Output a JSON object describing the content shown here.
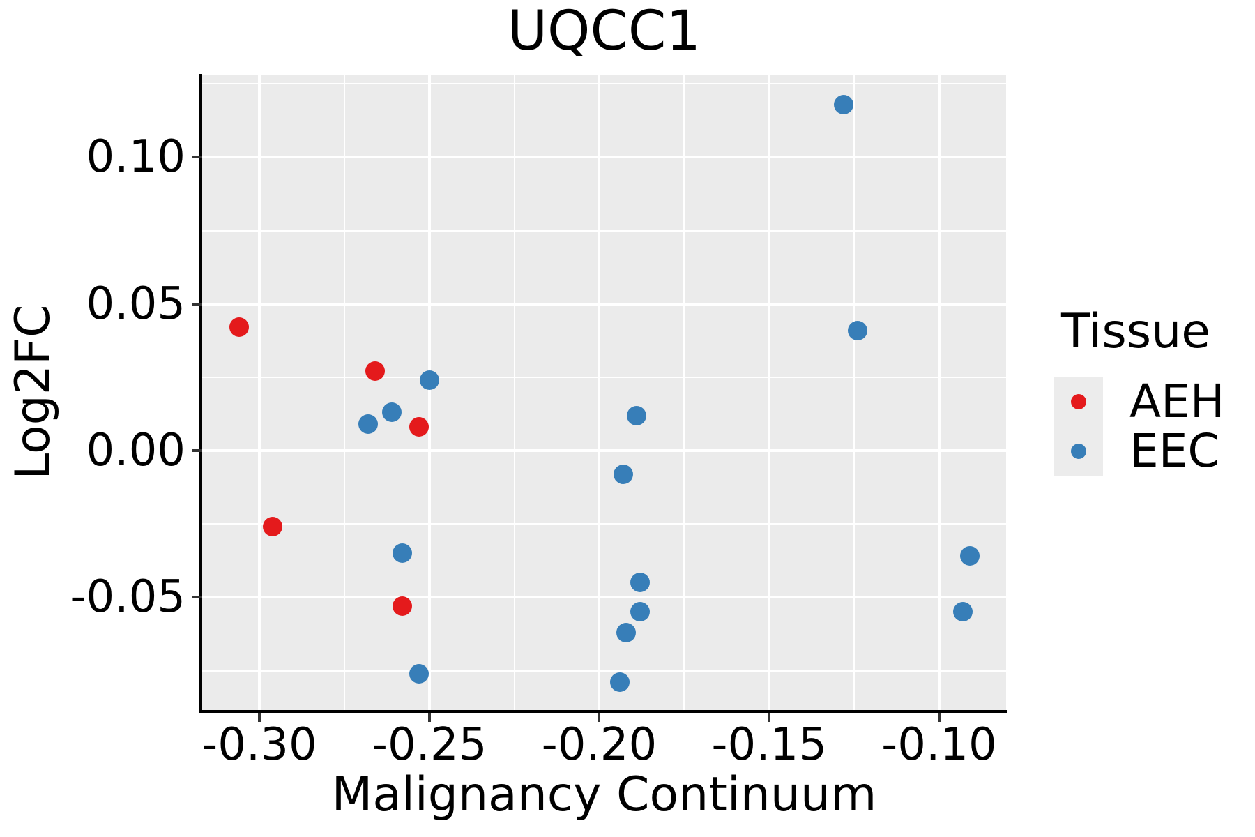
{
  "figure": {
    "title": "UQCC1",
    "x_axis_label": "Malignancy Continuum",
    "y_axis_label": "Log2FC"
  },
  "legend": {
    "title": "Tissue",
    "items": [
      {
        "label": "AEH",
        "color": "#E41A1C"
      },
      {
        "label": "EEC",
        "color": "#377EB8"
      }
    ]
  },
  "colors": {
    "panel_background": "#EBEBEB",
    "gridline": "#FFFFFF",
    "axis_line": "#000000",
    "tick": "#333333",
    "text": "#000000",
    "legend_key_background": "#ECECEC",
    "aeh_point": "#E41A1C",
    "eec_point": "#377EB8"
  },
  "chart_data": {
    "type": "scatter",
    "title": "UQCC1",
    "xlabel": "Malignancy Continuum",
    "ylabel": "Log2FC",
    "xlim": [
      -0.3168,
      -0.0803
    ],
    "ylim": [
      -0.0889,
      0.1279
    ],
    "x_ticks": [
      -0.3,
      -0.25,
      -0.2,
      -0.15,
      -0.1
    ],
    "x_tick_labels": [
      "-0.30",
      "-0.25",
      "-0.20",
      "-0.15",
      "-0.10"
    ],
    "x_minor_gridlines": [
      -0.275,
      -0.225,
      -0.175,
      -0.125
    ],
    "y_ticks": [
      0.1,
      0.05,
      0.0,
      -0.05
    ],
    "y_tick_labels": [
      "0.10",
      "0.05",
      "0.00",
      "-0.05"
    ],
    "y_minor_gridlines": [
      0.125,
      0.075,
      0.025,
      -0.025,
      -0.075
    ],
    "grid": true,
    "legend_position": "right",
    "series": [
      {
        "name": "AEH",
        "color": "#E41A1C",
        "points": [
          [
            -0.306,
            0.042
          ],
          [
            -0.266,
            0.027
          ],
          [
            -0.253,
            0.008
          ],
          [
            -0.296,
            -0.026
          ],
          [
            -0.258,
            -0.053
          ]
        ]
      },
      {
        "name": "EEC",
        "color": "#377EB8",
        "points": [
          [
            -0.25,
            0.024
          ],
          [
            -0.268,
            0.009
          ],
          [
            -0.261,
            0.013
          ],
          [
            -0.258,
            -0.035
          ],
          [
            -0.253,
            -0.076
          ],
          [
            -0.189,
            0.012
          ],
          [
            -0.193,
            -0.008
          ],
          [
            -0.188,
            -0.045
          ],
          [
            -0.188,
            -0.055
          ],
          [
            -0.192,
            -0.062
          ],
          [
            -0.194,
            -0.079
          ],
          [
            -0.128,
            0.118
          ],
          [
            -0.124,
            0.041
          ],
          [
            -0.091,
            -0.036
          ],
          [
            -0.093,
            -0.055
          ]
        ]
      }
    ]
  }
}
